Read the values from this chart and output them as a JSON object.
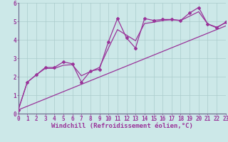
{
  "bg_color": "#cce8e8",
  "line_color": "#993399",
  "grid_color": "#aacccc",
  "xlabel": "Windchill (Refroidissement éolien,°C)",
  "x_ticks": [
    0,
    1,
    2,
    3,
    4,
    5,
    6,
    7,
    8,
    9,
    10,
    11,
    12,
    13,
    14,
    15,
    16,
    17,
    18,
    19,
    20,
    21,
    22,
    23
  ],
  "y_ticks": [
    0,
    1,
    2,
    3,
    4,
    5,
    6
  ],
  "xlim": [
    0,
    23
  ],
  "ylim": [
    0,
    6
  ],
  "zigzag_x": [
    0,
    1,
    2,
    3,
    4,
    5,
    6,
    7,
    8,
    9,
    10,
    11,
    12,
    13,
    14,
    15,
    16,
    17,
    18,
    19,
    20,
    21,
    22,
    23
  ],
  "zigzag_y": [
    0.2,
    1.7,
    2.1,
    2.5,
    2.5,
    2.8,
    2.7,
    1.7,
    2.3,
    2.4,
    3.9,
    5.15,
    4.1,
    3.55,
    5.15,
    5.05,
    5.1,
    5.1,
    5.05,
    5.45,
    5.75,
    4.85,
    4.65,
    4.95
  ],
  "trend_x": [
    0,
    23
  ],
  "trend_y": [
    0.2,
    4.75
  ],
  "smooth_x": [
    0,
    1,
    2,
    3,
    4,
    5,
    6,
    7,
    8,
    9,
    10,
    11,
    12,
    13,
    14,
    15,
    16,
    17,
    18,
    19,
    20,
    21,
    22,
    23
  ],
  "smooth_y": [
    0.2,
    1.7,
    2.1,
    2.45,
    2.45,
    2.62,
    2.65,
    2.05,
    2.28,
    2.5,
    3.55,
    4.55,
    4.25,
    3.95,
    4.88,
    4.95,
    5.05,
    5.08,
    5.04,
    5.28,
    5.52,
    4.86,
    4.68,
    4.92
  ],
  "tick_fontsize": 5.5,
  "xlabel_fontsize": 6.5,
  "lw": 0.9,
  "marker_size": 2.0
}
